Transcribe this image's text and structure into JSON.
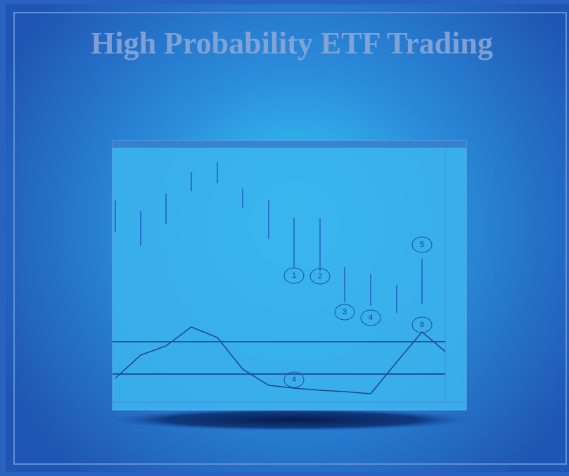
{
  "header": {
    "title": "High Probability ETF Trading"
  },
  "chart_labels": [
    "1",
    "2",
    "3",
    "4",
    "5",
    "6",
    "4"
  ]
}
